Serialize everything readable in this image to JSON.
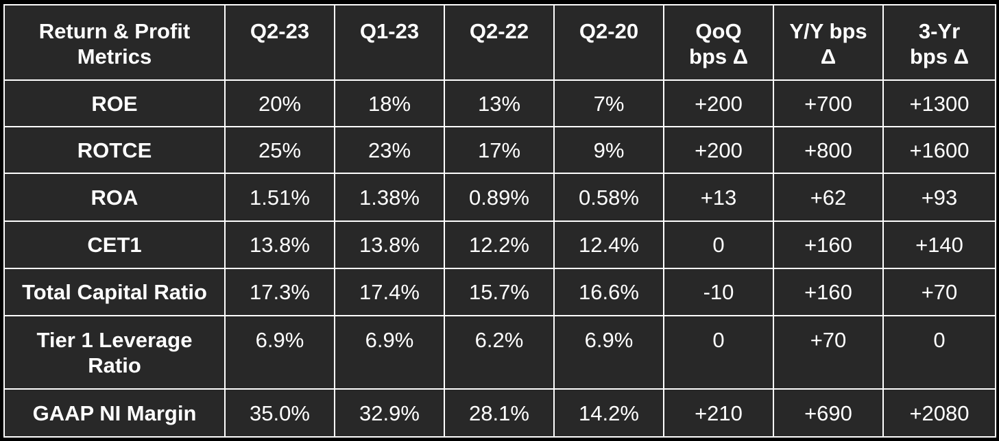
{
  "table": {
    "headers": [
      [
        "Return & Profit",
        "Metrics"
      ],
      [
        "Q2-23"
      ],
      [
        "Q1-23"
      ],
      [
        "Q2-22"
      ],
      [
        "Q2-20"
      ],
      [
        "QoQ",
        "bps Δ"
      ],
      [
        "Y/Y bps",
        "Δ"
      ],
      [
        "3-Yr",
        "bps Δ"
      ]
    ],
    "rows": [
      {
        "label": [
          "ROE"
        ],
        "values": [
          "20%",
          "18%",
          "13%",
          "7%",
          "+200",
          "+700",
          "+1300"
        ]
      },
      {
        "label": [
          "ROTCE"
        ],
        "values": [
          "25%",
          "23%",
          "17%",
          "9%",
          "+200",
          "+800",
          "+1600"
        ]
      },
      {
        "label": [
          "ROA"
        ],
        "values": [
          "1.51%",
          "1.38%",
          "0.89%",
          "0.58%",
          "+13",
          "+62",
          "+93"
        ]
      },
      {
        "label": [
          "CET1"
        ],
        "values": [
          "13.8%",
          "13.8%",
          "12.2%",
          "12.4%",
          "0",
          "+160",
          "+140"
        ]
      },
      {
        "label": [
          "Total Capital Ratio"
        ],
        "values": [
          "17.3%",
          "17.4%",
          "15.7%",
          "16.6%",
          "-10",
          "+160",
          "+70"
        ]
      },
      {
        "label": [
          "Tier 1 Leverage",
          "Ratio"
        ],
        "values": [
          "6.9%",
          "6.9%",
          "6.2%",
          "6.9%",
          "0",
          "+70",
          "0"
        ]
      },
      {
        "label": [
          "GAAP NI Margin"
        ],
        "values": [
          "35.0%",
          "32.9%",
          "28.1%",
          "14.2%",
          "+210",
          "+690",
          "+2080"
        ]
      }
    ]
  },
  "colors": {
    "background": "#000000",
    "cell_background": "#282828",
    "text": "#ffffff",
    "border": "#ffffff"
  }
}
